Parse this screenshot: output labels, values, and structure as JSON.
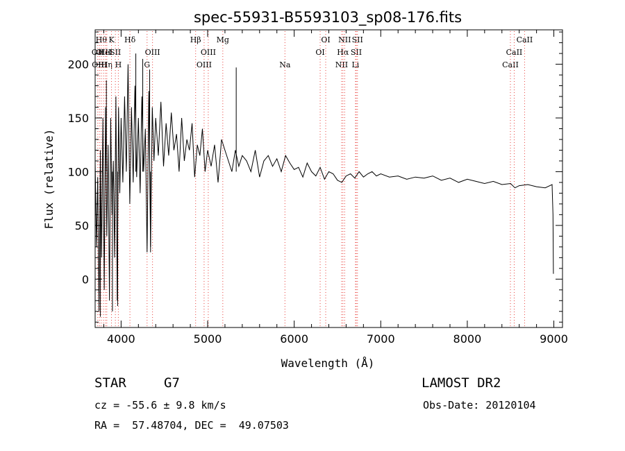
{
  "chart_data": {
    "type": "line",
    "title": "spec-55931-B5593103_sp08-176.fits",
    "xlabel": "Wavelength (Å)",
    "ylabel": "Flux (relative)",
    "xlim": [
      3700,
      9100
    ],
    "ylim": [
      -45,
      232
    ],
    "xticks": [
      4000,
      5000,
      6000,
      7000,
      8000,
      9000
    ],
    "yticks": [
      0,
      50,
      100,
      150,
      200
    ],
    "grid": false,
    "line_color": "#000000",
    "marker_color": "#e8413c",
    "series": [
      {
        "x": [
          3700,
          3715,
          3730,
          3745,
          3760,
          3775,
          3790,
          3805,
          3820,
          3835,
          3850,
          3865,
          3880,
          3895,
          3910,
          3925,
          3940,
          3955,
          3970,
          3985,
          4000,
          4020,
          4040,
          4060,
          4080,
          4100,
          4120,
          4140,
          4160,
          4180,
          4200,
          4220,
          4240,
          4260,
          4280,
          4300,
          4320,
          4340,
          4360,
          4380,
          4400,
          4430,
          4460,
          4490,
          4520,
          4550,
          4580,
          4610,
          4640,
          4670,
          4700,
          4730,
          4760,
          4790,
          4820,
          4850,
          4880,
          4910,
          4940,
          4970,
          5000,
          5040,
          5080,
          5120,
          5160,
          5200,
          5240,
          5280,
          5320,
          5360,
          5400,
          5450,
          5500,
          5550,
          5600,
          5650,
          5700,
          5750,
          5800,
          5850,
          5900,
          5950,
          6000,
          6050,
          6100,
          6150,
          6200,
          6250,
          6300,
          6350,
          6400,
          6450,
          6500,
          6550,
          6600,
          6650,
          6700,
          6750,
          6800,
          6850,
          6900,
          6950,
          7000,
          7100,
          7200,
          7300,
          7400,
          7500,
          7600,
          7700,
          7800,
          7900,
          8000,
          8100,
          8200,
          8300,
          8400,
          8500,
          8550,
          8600,
          8700,
          8800,
          8900,
          8980,
          8990,
          8995
        ],
        "y": [
          110,
          30,
          95,
          -30,
          120,
          20,
          150,
          -10,
          160,
          40,
          125,
          -20,
          150,
          60,
          110,
          20,
          170,
          -20,
          160,
          80,
          150,
          90,
          170,
          100,
          200,
          70,
          160,
          90,
          180,
          95,
          150,
          80,
          170,
          100,
          140,
          25,
          175,
          30,
          160,
          110,
          150,
          115,
          165,
          105,
          145,
          115,
          155,
          120,
          135,
          100,
          150,
          110,
          130,
          120,
          145,
          95,
          125,
          115,
          140,
          100,
          120,
          105,
          125,
          90,
          130,
          120,
          110,
          100,
          120,
          105,
          115,
          110,
          100,
          120,
          95,
          110,
          115,
          105,
          112,
          100,
          115,
          108,
          102,
          104,
          95,
          108,
          100,
          96,
          104,
          93,
          100,
          98,
          92,
          90,
          96,
          98,
          94,
          100,
          95,
          98,
          100,
          96,
          98,
          95,
          96,
          93,
          95,
          94,
          96,
          92,
          94,
          90,
          93,
          91,
          89,
          91,
          88,
          89,
          85,
          87,
          88,
          86,
          85,
          88,
          60,
          5
        ],
        "spikes": [
          {
            "x": 3760,
            "y": -35
          },
          {
            "x": 3830,
            "y": 185
          },
          {
            "x": 3900,
            "y": -30
          },
          {
            "x": 3960,
            "y": -25
          },
          {
            "x": 4170,
            "y": 210
          },
          {
            "x": 4250,
            "y": 205
          },
          {
            "x": 4330,
            "y": 195
          },
          {
            "x": 4340,
            "y": 25
          },
          {
            "x": 5330,
            "y": 197
          }
        ]
      }
    ],
    "spectral_lines": [
      {
        "x": 3730,
        "label": "OII",
        "row": 2
      },
      {
        "x": 3750,
        "label": "OIII",
        "row": 3
      },
      {
        "x": 3771,
        "label": "Hθ",
        "row": 1
      },
      {
        "x": 3797,
        "label": "OIII",
        "row": 2
      },
      {
        "x": 3820,
        "label": "HeI",
        "row": 2
      },
      {
        "x": 3835,
        "label": "Hη",
        "row": 3
      },
      {
        "x": 3889,
        "label": "K",
        "row": 1
      },
      {
        "x": 3934,
        "label": "SII",
        "row": 2
      },
      {
        "x": 3968,
        "label": "H",
        "row": 3
      },
      {
        "x": 4102,
        "label": "Hδ",
        "row": 1
      },
      {
        "x": 4300,
        "label": "G",
        "row": 3
      },
      {
        "x": 4363,
        "label": "OIII",
        "row": 2
      },
      {
        "x": 4861,
        "label": "Hβ",
        "row": 1
      },
      {
        "x": 4959,
        "label": "OIII",
        "row": 3
      },
      {
        "x": 5007,
        "label": "OIII",
        "row": 2
      },
      {
        "x": 5175,
        "label": "Mg",
        "row": 1
      },
      {
        "x": 5893,
        "label": "Na",
        "row": 3
      },
      {
        "x": 6300,
        "label": "OI",
        "row": 2
      },
      {
        "x": 6364,
        "label": "OI",
        "row": 1
      },
      {
        "x": 6548,
        "label": "NII",
        "row": 3
      },
      {
        "x": 6563,
        "label": "Hα",
        "row": 2
      },
      {
        "x": 6583,
        "label": "NII",
        "row": 1
      },
      {
        "x": 6708,
        "label": "Li",
        "row": 3
      },
      {
        "x": 6717,
        "label": "SII",
        "row": 2
      },
      {
        "x": 6731,
        "label": "SII",
        "row": 1
      },
      {
        "x": 8498,
        "label": "CaII",
        "row": 3
      },
      {
        "x": 8542,
        "label": "CaII",
        "row": 2
      },
      {
        "x": 8662,
        "label": "CaII",
        "row": 1
      }
    ]
  },
  "info": {
    "object_class": "STAR",
    "subclass": "G7",
    "survey": "LAMOST DR2",
    "redshift": "cz = -55.6 ± 9.8 km/s",
    "obs_date": "Obs-Date: 20120104",
    "coords": "RA =  57.48704, DEC =  49.07503"
  }
}
